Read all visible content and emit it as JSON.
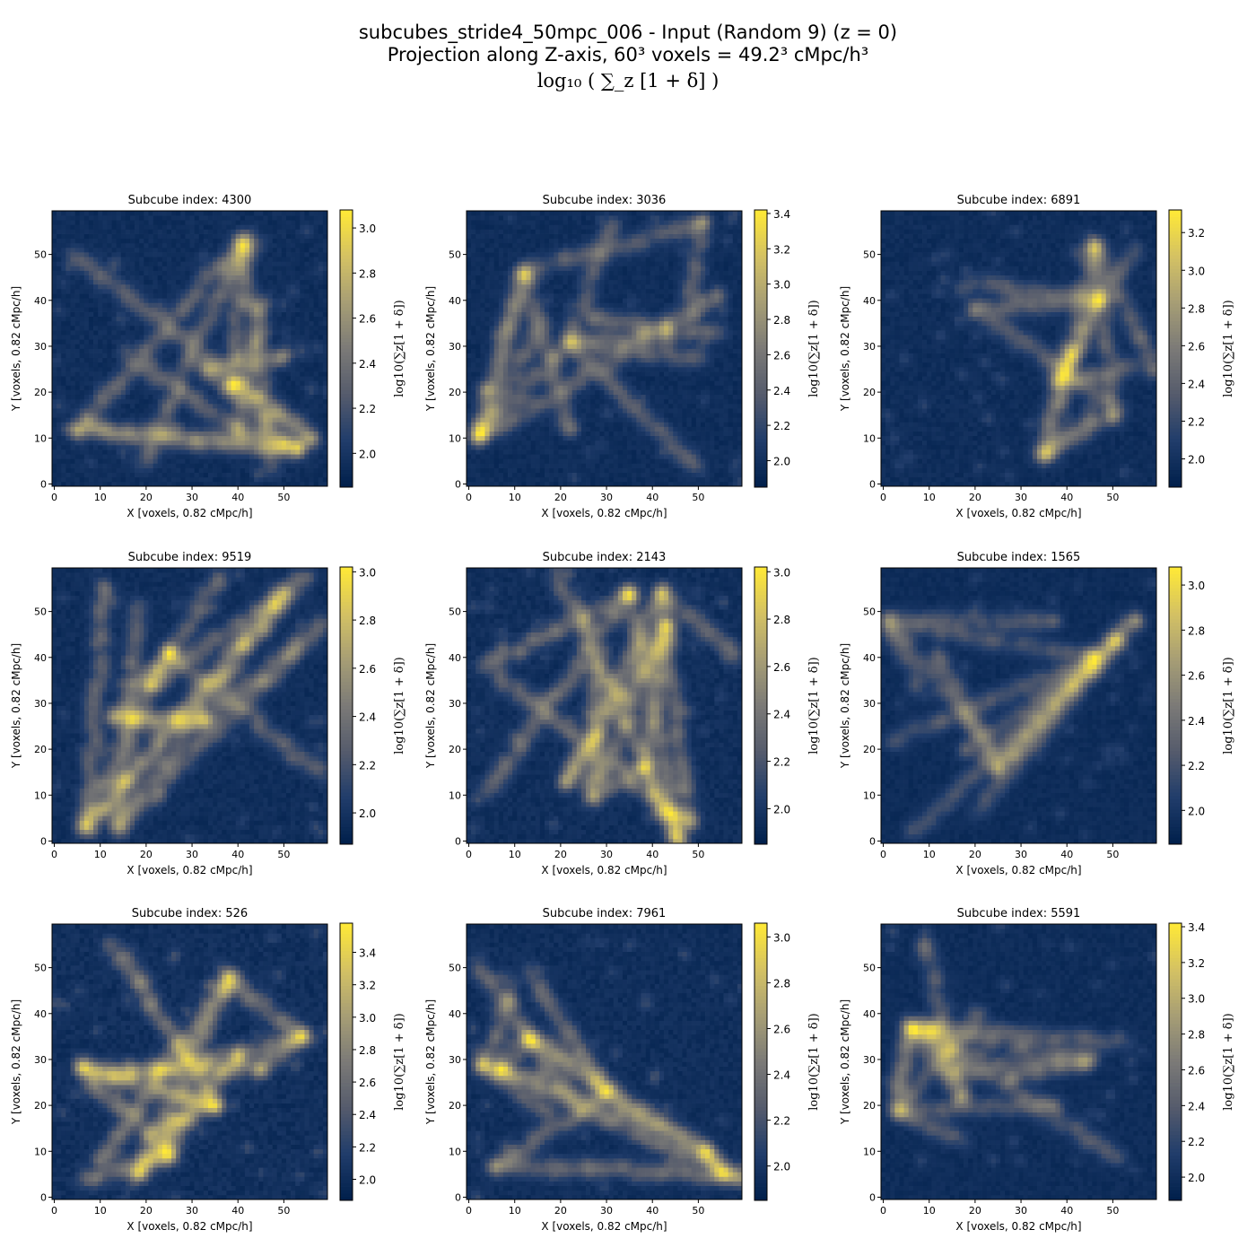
{
  "figure": {
    "title_line1": "subcubes_stride4_50mpc_006 - Input (Random 9) (z = 0)",
    "title_line2": "Projection along Z-axis, 60³ voxels = 49.2³ cMpc/h³",
    "title_line3": "log₁₀ ( ∑_z [1 + δ] )"
  },
  "colormap": [
    "#00204c",
    "#213d6b",
    "#555b6c",
    "#7b7a77",
    "#a69d75",
    "#d3c164",
    "#fee838"
  ],
  "chart_data": [
    {
      "type": "heatmap",
      "title": "Subcube index: 4300",
      "xlabel": "X [voxels, 0.82 cMpc/h]",
      "ylabel": "Y [voxels, 0.82 cMpc/h]",
      "colorbar_label": "log10(∑z[1 + δ])",
      "xlim": [
        0,
        59
      ],
      "ylim": [
        0,
        59
      ],
      "xticks": [
        0,
        10,
        20,
        30,
        40,
        50
      ],
      "yticks": [
        0,
        10,
        20,
        30,
        40,
        50
      ],
      "cbar_range": [
        1.85,
        3.08
      ],
      "cbar_ticks": [
        "2.0",
        "2.2",
        "2.4",
        "2.6",
        "2.8",
        "3.0"
      ],
      "cbar_tick_values": [
        2.0,
        2.2,
        2.4,
        2.6,
        2.8,
        3.0
      ],
      "hotspots": [
        [
          53,
          8
        ],
        [
          39,
          22
        ],
        [
          33,
          25
        ],
        [
          41,
          53
        ],
        [
          50,
          28
        ],
        [
          40,
          12
        ],
        [
          5,
          12
        ],
        [
          56,
          10
        ]
      ]
    },
    {
      "type": "heatmap",
      "title": "Subcube index: 3036",
      "xlabel": "X [voxels, 0.82 cMpc/h]",
      "ylabel": "Y [voxels, 0.82 cMpc/h]",
      "colorbar_label": "log10(∑z[1 + δ])",
      "xlim": [
        0,
        59
      ],
      "ylim": [
        0,
        59
      ],
      "xticks": [
        0,
        10,
        20,
        30,
        40,
        50
      ],
      "yticks": [
        0,
        10,
        20,
        30,
        40,
        50
      ],
      "cbar_range": [
        1.85,
        3.42
      ],
      "cbar_ticks": [
        "2.0",
        "2.2",
        "2.4",
        "2.6",
        "2.8",
        "3.0",
        "3.2",
        "3.4"
      ],
      "cbar_tick_values": [
        2.0,
        2.2,
        2.4,
        2.6,
        2.8,
        3.0,
        3.2,
        3.4
      ],
      "hotspots": [
        [
          51,
          57
        ],
        [
          12,
          46
        ],
        [
          22,
          31
        ],
        [
          43,
          34
        ],
        [
          27,
          36
        ],
        [
          54,
          41
        ],
        [
          22,
          12
        ],
        [
          2,
          10
        ]
      ]
    },
    {
      "type": "heatmap",
      "title": "Subcube index: 6891",
      "xlabel": "X [voxels, 0.82 cMpc/h]",
      "ylabel": "Y [voxels, 0.82 cMpc/h]",
      "colorbar_label": "log10(∑z[1 + δ])",
      "xlim": [
        0,
        59
      ],
      "ylim": [
        0,
        59
      ],
      "xticks": [
        0,
        10,
        20,
        30,
        40,
        50
      ],
      "yticks": [
        0,
        10,
        20,
        30,
        40,
        50
      ],
      "cbar_range": [
        1.85,
        3.32
      ],
      "cbar_ticks": [
        "2.0",
        "2.2",
        "2.4",
        "2.6",
        "2.8",
        "3.0",
        "3.2"
      ],
      "cbar_tick_values": [
        2.0,
        2.2,
        2.4,
        2.6,
        2.8,
        3.0,
        3.2
      ],
      "hotspots": [
        [
          46,
          52
        ],
        [
          41,
          28
        ],
        [
          47,
          40
        ],
        [
          59,
          25
        ],
        [
          50,
          15
        ],
        [
          35,
          6
        ],
        [
          20,
          38
        ],
        [
          38,
          22
        ]
      ]
    },
    {
      "type": "heatmap",
      "title": "Subcube index: 9519",
      "xlabel": "X [voxels, 0.82 cMpc/h]",
      "ylabel": "Y [voxels, 0.82 cMpc/h]",
      "colorbar_label": "log10(∑z[1 + δ])",
      "xlim": [
        0,
        59
      ],
      "ylim": [
        0,
        59
      ],
      "xticks": [
        0,
        10,
        20,
        30,
        40,
        50
      ],
      "yticks": [
        0,
        10,
        20,
        30,
        40,
        50
      ],
      "cbar_range": [
        1.87,
        3.02
      ],
      "cbar_ticks": [
        "2.0",
        "2.2",
        "2.4",
        "2.6",
        "2.8",
        "3.0"
      ],
      "cbar_tick_values": [
        2.0,
        2.2,
        2.4,
        2.6,
        2.8,
        3.0
      ],
      "hotspots": [
        [
          21,
          34
        ],
        [
          25,
          41
        ],
        [
          13,
          27
        ],
        [
          7,
          3
        ],
        [
          14,
          3
        ],
        [
          11,
          55
        ],
        [
          50,
          54
        ],
        [
          33,
          26
        ]
      ]
    },
    {
      "type": "heatmap",
      "title": "Subcube index: 2143",
      "xlabel": "X [voxels, 0.82 cMpc/h]",
      "ylabel": "Y [voxels, 0.82 cMpc/h]",
      "colorbar_label": "log10(∑z[1 + δ])",
      "xlim": [
        0,
        59
      ],
      "ylim": [
        0,
        59
      ],
      "xticks": [
        0,
        10,
        20,
        30,
        40,
        50
      ],
      "yticks": [
        0,
        10,
        20,
        30,
        40,
        50
      ],
      "cbar_range": [
        1.85,
        3.02
      ],
      "cbar_ticks": [
        "2.0",
        "2.2",
        "2.4",
        "2.6",
        "2.8",
        "3.0"
      ],
      "cbar_tick_values": [
        2.0,
        2.2,
        2.4,
        2.6,
        2.8,
        3.0
      ],
      "hotspots": [
        [
          42,
          54
        ],
        [
          35,
          54
        ],
        [
          21,
          13
        ],
        [
          27,
          10
        ],
        [
          38,
          16
        ],
        [
          48,
          4
        ],
        [
          46,
          0
        ],
        [
          43,
          47
        ]
      ]
    },
    {
      "type": "heatmap",
      "title": "Subcube index: 1565",
      "xlabel": "X [voxels, 0.82 cMpc/h]",
      "ylabel": "Y [voxels, 0.82 cMpc/h]",
      "colorbar_label": "log10(∑z[1 + δ])",
      "xlim": [
        0,
        59
      ],
      "ylim": [
        0,
        59
      ],
      "xticks": [
        0,
        10,
        20,
        30,
        40,
        50
      ],
      "yticks": [
        0,
        10,
        20,
        30,
        40,
        50
      ],
      "cbar_range": [
        1.85,
        3.08
      ],
      "cbar_ticks": [
        "2.0",
        "2.2",
        "2.4",
        "2.6",
        "2.8",
        "3.0"
      ],
      "cbar_tick_values": [
        2.0,
        2.2,
        2.4,
        2.6,
        2.8,
        3.0
      ],
      "hotspots": [
        [
          51,
          44
        ],
        [
          55,
          48
        ],
        [
          37,
          48
        ],
        [
          18,
          20
        ],
        [
          25,
          16
        ],
        [
          46,
          40
        ],
        [
          1,
          48
        ],
        [
          12,
          40
        ]
      ]
    },
    {
      "type": "heatmap",
      "title": "Subcube index: 526",
      "xlabel": "X [voxels, 0.82 cMpc/h]",
      "ylabel": "Y [voxels, 0.82 cMpc/h]",
      "colorbar_label": "log10(∑z[1 + δ])",
      "xlim": [
        0,
        59
      ],
      "ylim": [
        0,
        59
      ],
      "xticks": [
        0,
        10,
        20,
        30,
        40,
        50
      ],
      "yticks": [
        0,
        10,
        20,
        30,
        40,
        50
      ],
      "cbar_range": [
        1.87,
        3.58
      ],
      "cbar_ticks": [
        "2.0",
        "2.2",
        "2.4",
        "2.6",
        "2.8",
        "3.0",
        "3.2",
        "3.4"
      ],
      "cbar_tick_values": [
        2.0,
        2.2,
        2.4,
        2.6,
        2.8,
        3.0,
        3.2,
        3.4
      ],
      "hotspots": [
        [
          54,
          35
        ],
        [
          38,
          48
        ],
        [
          25,
          9
        ],
        [
          35,
          20
        ],
        [
          18,
          5
        ],
        [
          45,
          28
        ],
        [
          6,
          28
        ],
        [
          40,
          31
        ]
      ]
    },
    {
      "type": "heatmap",
      "title": "Subcube index: 7961",
      "xlabel": "X [voxels, 0.82 cMpc/h]",
      "ylabel": "Y [voxels, 0.82 cMpc/h]",
      "colorbar_label": "log10(∑z[1 + δ])",
      "xlim": [
        0,
        59
      ],
      "ylim": [
        0,
        59
      ],
      "xticks": [
        0,
        10,
        20,
        30,
        40,
        50
      ],
      "yticks": [
        0,
        10,
        20,
        30,
        40,
        50
      ],
      "cbar_range": [
        1.85,
        3.06
      ],
      "cbar_ticks": [
        "2.0",
        "2.2",
        "2.4",
        "2.6",
        "2.8",
        "3.0"
      ],
      "cbar_tick_values": [
        2.0,
        2.2,
        2.4,
        2.6,
        2.8,
        3.0
      ],
      "hotspots": [
        [
          3,
          29
        ],
        [
          7,
          28
        ],
        [
          56,
          5
        ],
        [
          59,
          4
        ],
        [
          52,
          10
        ],
        [
          13,
          35
        ],
        [
          6,
          7
        ],
        [
          30,
          23
        ]
      ]
    },
    {
      "type": "heatmap",
      "title": "Subcube index: 5591",
      "xlabel": "X [voxels, 0.82 cMpc/h]",
      "ylabel": "Y [voxels, 0.82 cMpc/h]",
      "colorbar_label": "log10(∑z[1 + δ])",
      "xlim": [
        0,
        59
      ],
      "ylim": [
        0,
        59
      ],
      "xticks": [
        0,
        10,
        20,
        30,
        40,
        50
      ],
      "yticks": [
        0,
        10,
        20,
        30,
        40,
        50
      ],
      "cbar_range": [
        1.87,
        3.42
      ],
      "cbar_ticks": [
        "2.0",
        "2.2",
        "2.4",
        "2.6",
        "2.8",
        "3.0",
        "3.2",
        "3.4"
      ],
      "cbar_tick_values": [
        2.0,
        2.2,
        2.4,
        2.6,
        2.8,
        3.0,
        3.2,
        3.4
      ],
      "hotspots": [
        [
          6,
          37
        ],
        [
          10,
          37
        ],
        [
          37,
          20
        ],
        [
          17,
          22
        ],
        [
          9,
          55
        ],
        [
          45,
          30
        ],
        [
          3,
          19
        ],
        [
          28,
          26
        ]
      ]
    }
  ]
}
